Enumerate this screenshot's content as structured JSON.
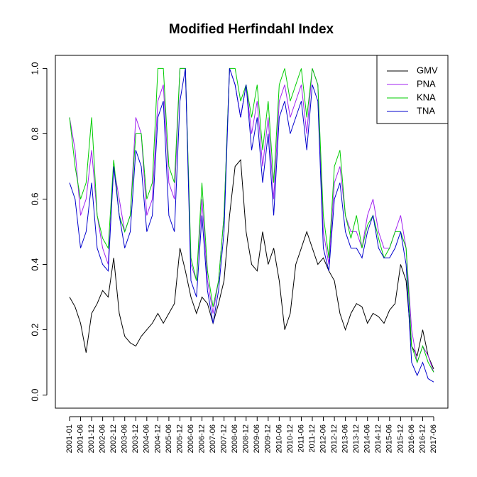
{
  "chart_data": {
    "type": "line",
    "title": "Modified Herfindahl Index",
    "categories": [
      "2001-01",
      null,
      "2001-06",
      null,
      "2001-12",
      null,
      "2002-06",
      null,
      "2002-12",
      null,
      "2003-06",
      null,
      "2003-12",
      null,
      "2004-06",
      null,
      "2004-12",
      null,
      "2005-06",
      null,
      "2005-12",
      null,
      "2006-06",
      null,
      "2006-12",
      null,
      "2007-06",
      null,
      "2007-12",
      null,
      "2008-06",
      null,
      "2008-12",
      null,
      "2009-06",
      null,
      "2009-12",
      null,
      "2010-06",
      null,
      "2010-12",
      null,
      "2011-06",
      null,
      "2011-12",
      null,
      "2012-06",
      null,
      "2012-12",
      null,
      "2013-06",
      null,
      "2013-12",
      null,
      "2014-06",
      null,
      "2014-12",
      null,
      "2015-06",
      null,
      "2015-12",
      null,
      "2016-06",
      null,
      "2016-12",
      null,
      "2017-06"
    ],
    "series": [
      {
        "name": "GMV",
        "color": "#000000",
        "values": [
          0.3,
          0.27,
          0.22,
          0.13,
          0.25,
          0.28,
          0.32,
          0.3,
          0.42,
          0.25,
          0.18,
          0.16,
          0.15,
          0.18,
          0.2,
          0.22,
          0.25,
          0.22,
          0.25,
          0.28,
          0.45,
          0.38,
          0.3,
          0.25,
          0.3,
          0.28,
          0.22,
          0.28,
          0.35,
          0.55,
          0.7,
          0.72,
          0.5,
          0.4,
          0.38,
          0.5,
          0.4,
          0.45,
          0.35,
          0.2,
          0.25,
          0.4,
          0.45,
          0.5,
          0.45,
          0.4,
          0.42,
          0.38,
          0.35,
          0.25,
          0.2,
          0.25,
          0.28,
          0.27,
          0.22,
          0.25,
          0.24,
          0.22,
          0.26,
          0.28,
          0.4,
          0.35,
          0.15,
          0.12,
          0.2,
          0.12,
          0.08
        ]
      },
      {
        "name": "PNA",
        "color": "#a020f0",
        "values": [
          0.85,
          0.75,
          0.55,
          0.6,
          0.75,
          0.55,
          0.45,
          0.4,
          0.7,
          0.6,
          0.5,
          0.55,
          0.85,
          0.8,
          0.55,
          0.6,
          0.9,
          0.95,
          0.65,
          0.6,
          1.0,
          1.0,
          0.4,
          0.35,
          0.6,
          0.35,
          0.25,
          0.35,
          0.55,
          1.0,
          0.95,
          0.85,
          0.95,
          0.8,
          0.9,
          0.7,
          0.85,
          0.6,
          0.9,
          0.95,
          0.85,
          0.9,
          0.95,
          0.8,
          1.0,
          0.95,
          0.5,
          0.4,
          0.65,
          0.7,
          0.55,
          0.5,
          0.5,
          0.45,
          0.55,
          0.6,
          0.5,
          0.45,
          0.45,
          0.5,
          0.55,
          0.45,
          0.2,
          0.1,
          0.15,
          0.12,
          0.07
        ]
      },
      {
        "name": "KNA",
        "color": "#00cd00",
        "values": [
          0.85,
          0.7,
          0.6,
          0.65,
          0.85,
          0.55,
          0.48,
          0.45,
          0.72,
          0.55,
          0.5,
          0.55,
          0.8,
          0.8,
          0.6,
          0.65,
          1.0,
          1.0,
          0.7,
          0.65,
          1.0,
          1.0,
          0.42,
          0.35,
          0.65,
          0.38,
          0.27,
          0.35,
          0.55,
          1.0,
          1.0,
          0.9,
          0.95,
          0.85,
          0.95,
          0.75,
          0.9,
          0.65,
          0.95,
          1.0,
          0.9,
          0.95,
          1.0,
          0.85,
          1.0,
          0.95,
          0.55,
          0.42,
          0.7,
          0.75,
          0.55,
          0.48,
          0.55,
          0.45,
          0.52,
          0.55,
          0.48,
          0.42,
          0.45,
          0.5,
          0.5,
          0.45,
          0.15,
          0.1,
          0.15,
          0.1,
          0.07
        ]
      },
      {
        "name": "TNA",
        "color": "#0000cd",
        "values": [
          0.65,
          0.6,
          0.45,
          0.5,
          0.65,
          0.45,
          0.4,
          0.38,
          0.7,
          0.55,
          0.45,
          0.5,
          0.75,
          0.7,
          0.5,
          0.55,
          0.85,
          0.9,
          0.55,
          0.5,
          0.9,
          1.0,
          0.35,
          0.3,
          0.55,
          0.32,
          0.22,
          0.32,
          0.5,
          1.0,
          0.95,
          0.85,
          0.95,
          0.75,
          0.85,
          0.65,
          0.8,
          0.55,
          0.85,
          0.9,
          0.8,
          0.85,
          0.9,
          0.75,
          0.95,
          0.9,
          0.45,
          0.38,
          0.6,
          0.65,
          0.5,
          0.45,
          0.45,
          0.42,
          0.5,
          0.55,
          0.45,
          0.42,
          0.42,
          0.45,
          0.5,
          0.4,
          0.1,
          0.06,
          0.1,
          0.05,
          0.04
        ]
      }
    ],
    "ylim": [
      -0.04,
      1.04
    ],
    "yticks": [
      {
        "value": 0,
        "label": "0.0"
      },
      0.2,
      0.4,
      0.6,
      0.8,
      {
        "value": 1,
        "label": "1.0"
      }
    ],
    "legend": "topright"
  }
}
